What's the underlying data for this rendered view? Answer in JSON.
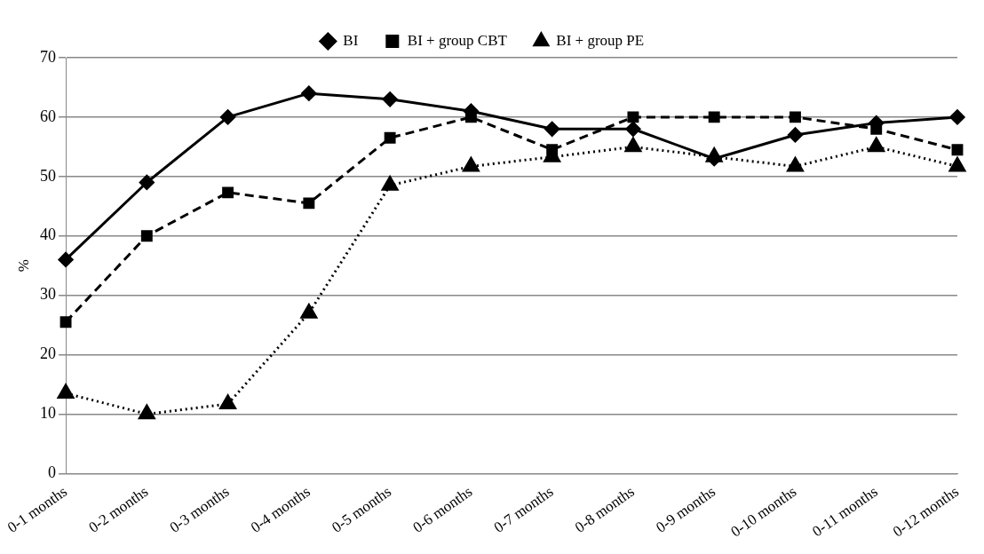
{
  "chart_data": {
    "type": "line",
    "ylabel": "%",
    "categories": [
      "0-1 months",
      "0-2 months",
      "0-3 months",
      "0-4 months",
      "0-5 months",
      "0-6 months",
      "0-7 months",
      "0-8 months",
      "0-9 months",
      "0-10 months",
      "0-11 months",
      "0-12 months"
    ],
    "series": [
      {
        "name": "BI",
        "color": "#000000",
        "marker": "diamond",
        "line_style": "solid",
        "values": [
          36,
          49,
          60,
          64,
          63,
          61,
          58,
          58,
          53,
          57,
          59,
          60
        ]
      },
      {
        "name": "BI + group CBT",
        "color": "#000000",
        "marker": "square",
        "line_style": "dashed",
        "values": [
          25.5,
          40,
          47.3,
          45.5,
          56.5,
          60,
          54.5,
          60,
          60,
          60,
          58,
          54.5
        ]
      },
      {
        "name": "BI + group PE",
        "color": "#000000",
        "marker": "triangle",
        "line_style": "dotted",
        "values": [
          13.5,
          10,
          11.7,
          27,
          48.5,
          51.7,
          53.3,
          55,
          53.3,
          51.7,
          55,
          51.7
        ]
      }
    ],
    "ylim": [
      0,
      70
    ],
    "yticks": [
      0,
      10,
      20,
      30,
      40,
      50,
      60,
      70
    ],
    "grid": "y",
    "legend": "top"
  }
}
